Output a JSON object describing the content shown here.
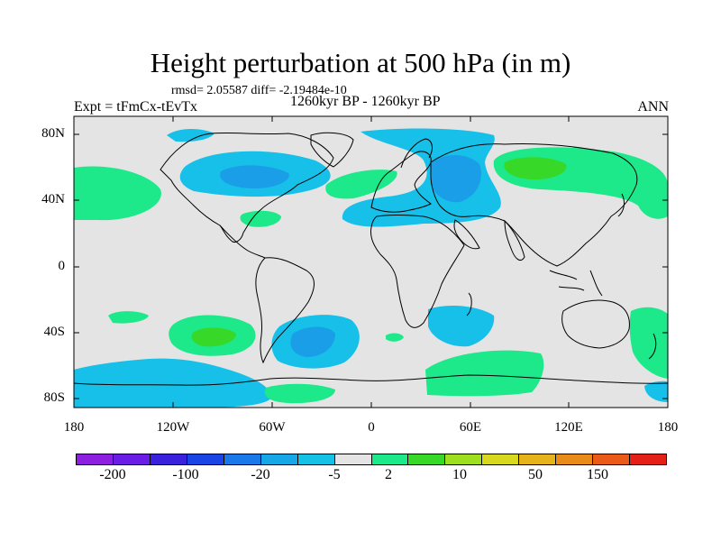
{
  "title": "Height perturbation at 500 hPa (in m)",
  "stats_line": "rmsd= 2.05587 diff= -2.19484e-10",
  "period": "1260kyr BP - 1260kyr BP",
  "experiment": "Expt = tFmCx-tEvTx",
  "season": "ANN",
  "lat_ticks": [
    "80N",
    "40N",
    "0",
    "40S",
    "80S"
  ],
  "lon_ticks": [
    "180",
    "120W",
    "60W",
    "0",
    "60E",
    "120E",
    "180"
  ],
  "colorbar": {
    "colors": [
      "#8c1fe0",
      "#6a1ee5",
      "#3a22dc",
      "#1a44e6",
      "#1a78e8",
      "#17a6e6",
      "#15c2e6",
      "#e4e4e4",
      "#1de88a",
      "#38d828",
      "#9ee020",
      "#d8d81e",
      "#e6b41a",
      "#ea8a18",
      "#ea5a18",
      "#e42018"
    ],
    "labels": [
      "-200",
      "-100",
      "-20",
      "-5",
      "2",
      "10",
      "50",
      "150"
    ]
  },
  "legend_colors": {
    "ocean_neutral": "#e4e4e4",
    "light_blue": "#16c0e8",
    "mid_blue": "#1a9ee8",
    "green": "#1de88a",
    "bright_green": "#38d828"
  }
}
